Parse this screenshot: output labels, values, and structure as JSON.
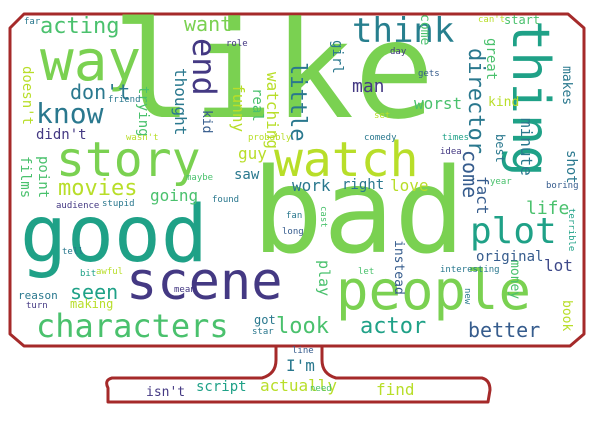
{
  "wordcloud": {
    "outline_color": "#a52a2a",
    "words": [
      {
        "text": "like",
        "color": "#7ad151"
      },
      {
        "text": "bad",
        "color": "#7ad151"
      },
      {
        "text": "good",
        "color": "#1fa187"
      },
      {
        "text": "way",
        "color": "#7ad151"
      },
      {
        "text": "story",
        "color": "#7ad151"
      },
      {
        "text": "watch",
        "color": "#b8de29"
      },
      {
        "text": "people",
        "color": "#7ad151"
      },
      {
        "text": "scene",
        "color": "#443983"
      },
      {
        "text": "thing",
        "color": "#1fa187"
      },
      {
        "text": "plot",
        "color": "#1fa187"
      },
      {
        "text": "characters",
        "color": "#4ac16d"
      },
      {
        "text": "think",
        "color": "#277f8e"
      },
      {
        "text": "end",
        "color": "#443983"
      },
      {
        "text": "know",
        "color": "#2a788e"
      },
      {
        "text": "acting",
        "color": "#4ac16d"
      },
      {
        "text": "movies",
        "color": "#b8de29"
      },
      {
        "text": "don't",
        "color": "#2a788e"
      },
      {
        "text": "seen",
        "color": "#1fa187"
      },
      {
        "text": "actor",
        "color": "#1fa187"
      },
      {
        "text": "look",
        "color": "#4ac16d"
      },
      {
        "text": "better",
        "color": "#365c8d"
      },
      {
        "text": "director",
        "color": "#2a788e"
      },
      {
        "text": "want",
        "color": "#7ad151"
      },
      {
        "text": "little",
        "color": "#2a788e"
      },
      {
        "text": "come",
        "color": "#365c8d"
      },
      {
        "text": "man",
        "color": "#443983"
      },
      {
        "text": "going",
        "color": "#4ac16d"
      },
      {
        "text": "love",
        "color": "#b8de29"
      },
      {
        "text": "work",
        "color": "#2a788e"
      },
      {
        "text": "right",
        "color": "#2a788e"
      },
      {
        "text": "fact",
        "color": "#365c8d"
      },
      {
        "text": "life",
        "color": "#4ac16d"
      },
      {
        "text": "lot",
        "color": "#3e4989"
      },
      {
        "text": "minute",
        "color": "#2a788e"
      },
      {
        "text": "shot",
        "color": "#2a788e"
      },
      {
        "text": "original",
        "color": "#365c8d"
      },
      {
        "text": "worst",
        "color": "#4ac16d"
      },
      {
        "text": "great",
        "color": "#4ac16d"
      },
      {
        "text": "watching",
        "color": "#b8de29"
      },
      {
        "text": "funny",
        "color": "#b8de29"
      },
      {
        "text": "thought",
        "color": "#2a788e"
      },
      {
        "text": "real",
        "color": "#4ac16d"
      },
      {
        "text": "kid",
        "color": "#365c8d"
      },
      {
        "text": "guy",
        "color": "#b8de29"
      },
      {
        "text": "saw",
        "color": "#2a788e"
      },
      {
        "text": "films",
        "color": "#4ac16d"
      },
      {
        "text": "point",
        "color": "#4ac16d"
      },
      {
        "text": "didn't",
        "color": "#443983"
      },
      {
        "text": "trying",
        "color": "#4ac16d"
      },
      {
        "text": "doesn't",
        "color": "#b8de29"
      },
      {
        "text": "girl",
        "color": "#2a788e"
      },
      {
        "text": "script",
        "color": "#1fa187"
      },
      {
        "text": "actually",
        "color": "#b8de29"
      },
      {
        "text": "find",
        "color": "#b8de29"
      },
      {
        "text": "I'm",
        "color": "#2a788e"
      },
      {
        "text": "isn't",
        "color": "#443983"
      },
      {
        "text": "need",
        "color": "#4ac16d"
      },
      {
        "text": "play",
        "color": "#4ac16d"
      },
      {
        "text": "instead",
        "color": "#365c8d"
      },
      {
        "text": "money",
        "color": "#4ac16d"
      },
      {
        "text": "book",
        "color": "#b8de29"
      },
      {
        "text": "makes",
        "color": "#2a788e"
      },
      {
        "text": "kind",
        "color": "#b8de29"
      },
      {
        "text": "best",
        "color": "#2a788e"
      },
      {
        "text": "start",
        "color": "#4ac16d"
      },
      {
        "text": "reason",
        "color": "#2a788e"
      },
      {
        "text": "making",
        "color": "#b8de29"
      },
      {
        "text": "got",
        "color": "#2a788e"
      },
      {
        "text": "star",
        "color": "#2a788e"
      },
      {
        "text": "line",
        "color": "#365c8d"
      },
      {
        "text": "interesting",
        "color": "#2a788e"
      },
      {
        "text": "friend",
        "color": "#2a788e"
      },
      {
        "text": "wasn't",
        "color": "#b8de29"
      },
      {
        "text": "probably",
        "color": "#b8de29"
      },
      {
        "text": "comedy",
        "color": "#2a788e"
      },
      {
        "text": "idea",
        "color": "#443983"
      },
      {
        "text": "times",
        "color": "#1fa187"
      },
      {
        "text": "year",
        "color": "#4ac16d"
      },
      {
        "text": "boring",
        "color": "#365c8d"
      },
      {
        "text": "terrible",
        "color": "#1fa187"
      },
      {
        "text": "maybe",
        "color": "#4ac16d"
      },
      {
        "text": "found",
        "color": "#2a788e"
      },
      {
        "text": "audience",
        "color": "#443983"
      },
      {
        "text": "stupid",
        "color": "#2a788e"
      },
      {
        "text": "fan",
        "color": "#2a788e"
      },
      {
        "text": "long",
        "color": "#365c8d"
      },
      {
        "text": "cast",
        "color": "#4ac16d"
      },
      {
        "text": "tell",
        "color": "#2a788e"
      },
      {
        "text": "bit",
        "color": "#1fa187"
      },
      {
        "text": "awful",
        "color": "#b8de29"
      },
      {
        "text": "mean",
        "color": "#443983"
      },
      {
        "text": "let",
        "color": "#4ac16d"
      },
      {
        "text": "new",
        "color": "#2a788e"
      },
      {
        "text": "turn",
        "color": "#443983"
      },
      {
        "text": "role",
        "color": "#443983"
      },
      {
        "text": "day",
        "color": "#443983"
      },
      {
        "text": "gets",
        "color": "#365c8d"
      },
      {
        "text": "set",
        "color": "#b8de29"
      },
      {
        "text": "can't",
        "color": "#b8de29"
      },
      {
        "text": "far",
        "color": "#2a788e"
      },
      {
        "text": "come",
        "color": "#4ac16d"
      }
    ]
  }
}
